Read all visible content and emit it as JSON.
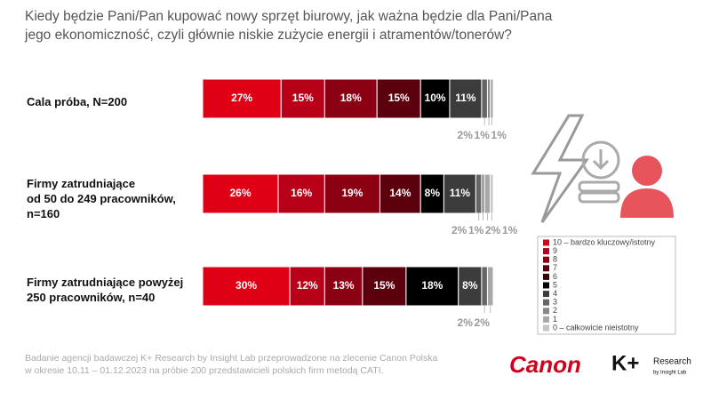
{
  "chart_data": {
    "type": "bar",
    "orientation": "horizontal",
    "stacked": true,
    "title": "Kiedy będzie Pani/Pan kupować nowy sprzęt biurowy, jak ważna będzie dla Pani/Pana\njego ekonomiczność, czyli głównie niskie zużycie energii i atramentów/tonerów?",
    "categories": [
      "Cala próba, N=200",
      "Firmy zatrudniające\nod 50 do 249 pracowników,\nn=160",
      "Firmy zatrudniające powyżej\n250 pracowników, n=40"
    ],
    "series": [
      {
        "name": "10 – bardzo kluczowy/istotny",
        "color": "#e00016",
        "values": [
          27,
          26,
          30
        ],
        "value_labels": [
          "27%",
          "26%",
          "30%"
        ]
      },
      {
        "name": "9",
        "color": "#b80018",
        "values": [
          15,
          16,
          12
        ],
        "value_labels": [
          "15%",
          "16%",
          "12%"
        ]
      },
      {
        "name": "8",
        "color": "#8c0014",
        "values": [
          18,
          19,
          13
        ],
        "value_labels": [
          "18%",
          "19%",
          "13%"
        ]
      },
      {
        "name": "7",
        "color": "#5c000e",
        "values": [
          15,
          14,
          15
        ],
        "value_labels": [
          "15%",
          "14%",
          "15%"
        ]
      },
      {
        "name": "6",
        "color": "#3a0009",
        "values": [
          0,
          0,
          0
        ],
        "value_labels": [
          null,
          null,
          null
        ]
      },
      {
        "name": "5",
        "color": "#000000",
        "values": [
          10,
          8,
          18
        ],
        "value_labels": [
          "10%",
          "8%",
          "18%"
        ]
      },
      {
        "name": "4",
        "color": "#3c3c3c",
        "values": [
          11,
          11,
          8
        ],
        "value_labels": [
          "11%",
          "11%",
          "8%"
        ]
      },
      {
        "name": "3",
        "color": "#666666",
        "values": [
          2,
          2,
          2
        ],
        "value_labels": [
          "2%",
          "2%",
          "2%"
        ]
      },
      {
        "name": "2",
        "color": "#888888",
        "values": [
          1,
          1,
          0
        ],
        "value_labels": [
          "1%",
          "1%",
          null
        ]
      },
      {
        "name": "1",
        "color": "#a8a8a8",
        "values": [
          1,
          2,
          2
        ],
        "value_labels": [
          "1%",
          "2%",
          "2%"
        ]
      },
      {
        "name": "0 – całkowicie nieistotny",
        "color": "#c4c4c4",
        "values": [
          0,
          1,
          0
        ],
        "value_labels": [
          null,
          "1%",
          null
        ]
      }
    ],
    "source": "Badanie agencji badawczej K+ Research by Insight Lab przeprowadzone na zlecenie Canon Polska\nw okresie 10.11 – 01.12.2023 na próbie 200 przedstawicieli polskich firm metodą CATI.",
    "brands": [
      "Canon",
      "K+",
      "Research",
      "by Insight Lab"
    ]
  }
}
